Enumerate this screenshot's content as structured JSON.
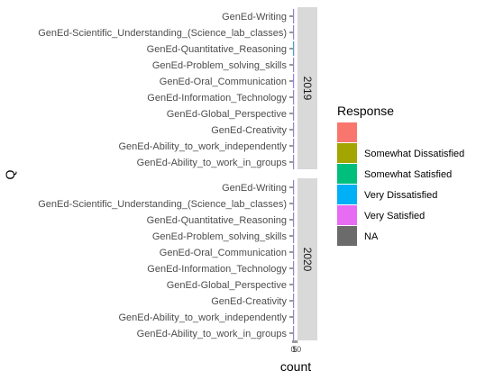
{
  "chart_data": {
    "type": "bar",
    "orientation": "horizontal",
    "stacked": true,
    "xlabel": "count",
    "ylabel": "Q",
    "legend": {
      "title": "Response",
      "position": "right",
      "entries": [
        {
          "name": "",
          "color": "#F8766D"
        },
        {
          "name": "Somewhat Dissatisfied",
          "color": "#A3A500"
        },
        {
          "name": "Somewhat Satisfied",
          "color": "#00BF7D"
        },
        {
          "name": "Very Dissatisfied",
          "color": "#00B0F6"
        },
        {
          "name": "Very Satisfied",
          "color": "#E76BF3"
        },
        {
          "name": "NA",
          "color": "#6B6B6B"
        }
      ]
    },
    "categories": [
      "GenEd-Writing",
      "GenEd-Scientific_Understanding_(Science_lab_classes)",
      "GenEd-Quantitative_Reasoning",
      "GenEd-Problem_solving_skills",
      "GenEd-Oral_Communication",
      "GenEd-Information_Technology",
      "GenEd-Global_Perspective",
      "GenEd-Creativity",
      "GenEd-Ability_to_work_independently",
      "GenEd-Ability_to_work_in_groups"
    ],
    "xlim": [
      0,
      12
    ],
    "facets": [
      {
        "label": "2019",
        "series": [
          {
            "name": "",
            "values": [
              0,
              0,
              0,
              0,
              0,
              0,
              0,
              0,
              0,
              0
            ]
          },
          {
            "name": "Somewhat Dissatisfied",
            "values": [
              0,
              0,
              0,
              0,
              0,
              0,
              0,
              0,
              0,
              0
            ]
          },
          {
            "name": "Somewhat Satisfied",
            "values": [
              1,
              1,
              1,
              1,
              0,
              1,
              1,
              1,
              1,
              1
            ]
          },
          {
            "name": "Very Dissatisfied",
            "values": [
              0,
              0,
              1,
              0,
              1,
              0,
              0,
              0,
              0,
              0
            ]
          },
          {
            "name": "Very Satisfied",
            "values": [
              2,
              2,
              1,
              2,
              2,
              2,
              2,
              2,
              2,
              2
            ]
          },
          {
            "name": "NA",
            "values": [
              0,
              0,
              0,
              0,
              0,
              0,
              0,
              0,
              0,
              0
            ]
          }
        ]
      },
      {
        "label": "2020",
        "series": [
          {
            "name": "",
            "values": [
              0,
              0,
              0,
              0,
              0,
              0,
              0,
              0,
              0,
              0
            ]
          },
          {
            "name": "Somewhat Dissatisfied",
            "values": [
              0,
              0,
              0,
              0,
              0,
              0,
              0,
              0,
              0,
              0
            ]
          },
          {
            "name": "Somewhat Satisfied",
            "values": [
              1,
              1,
              1,
              1,
              1,
              1,
              1,
              1,
              1,
              1
            ]
          },
          {
            "name": "Very Dissatisfied",
            "values": [
              0,
              0,
              0,
              0,
              0,
              0,
              0,
              0,
              0,
              0
            ]
          },
          {
            "name": "Very Satisfied",
            "values": [
              2,
              2,
              2,
              2,
              2,
              2,
              2,
              2,
              2,
              2
            ]
          },
          {
            "name": "NA",
            "values": [
              0,
              0,
              0,
              0,
              0,
              0,
              0,
              0,
              0,
              0
            ]
          }
        ]
      }
    ],
    "xtick_labels": [
      "0",
      "5",
      "10"
    ],
    "grid": false
  }
}
